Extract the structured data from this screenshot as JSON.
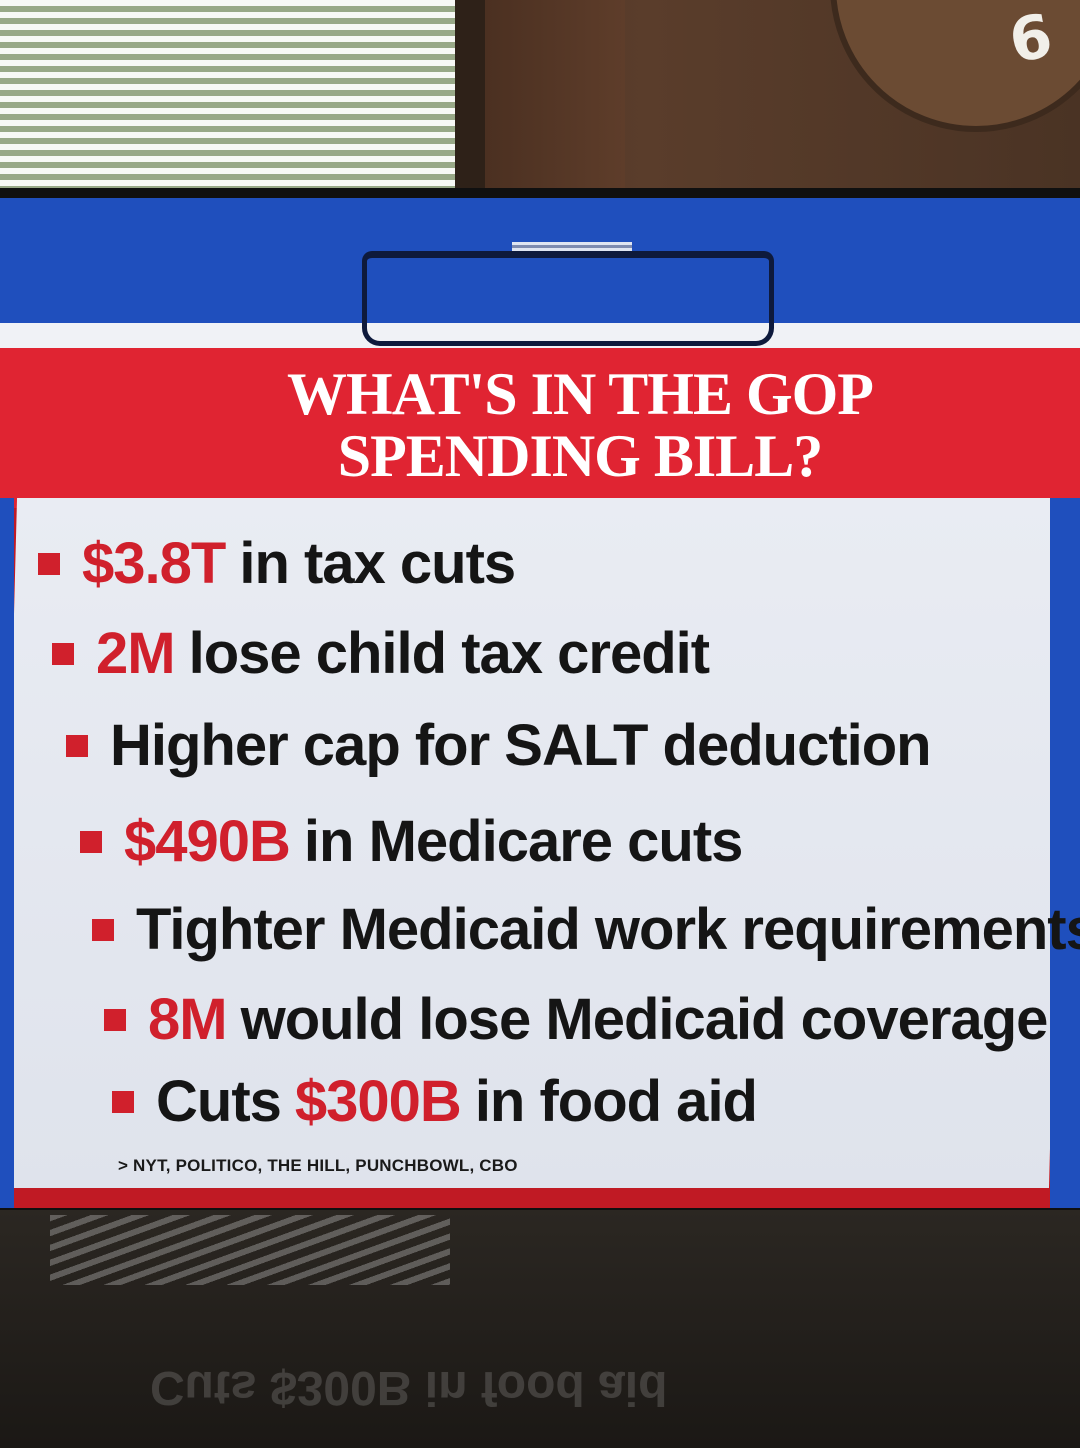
{
  "graphic": {
    "title_line1": "WHAT'S IN THE GOP",
    "title_line2": "SPENDING BILL?",
    "bullets": [
      {
        "highlight": "$3.8T",
        "text": "in tax cuts"
      },
      {
        "highlight": "2M",
        "text": "lose child tax credit"
      },
      {
        "highlight": "",
        "text": "Higher cap for SALT deduction"
      },
      {
        "highlight": "$490B",
        "text": "in Medicare cuts"
      },
      {
        "highlight": "",
        "text": "Tighter Medicaid work requirements"
      },
      {
        "highlight": "8M",
        "text": "would lose Medicaid coverage"
      },
      {
        "prefix": "Cuts",
        "highlight": "$300B",
        "text": "in food aid"
      }
    ],
    "source": "> NYT, POLITICO, THE HILL, PUNCHBOWL, CBO"
  },
  "background": {
    "clock_digit": "6",
    "reflection_text": "Cuts $300B in food aid"
  },
  "colors": {
    "red": "#e02432",
    "blue": "#1f4fbd",
    "highlight_red": "#d0202c"
  }
}
